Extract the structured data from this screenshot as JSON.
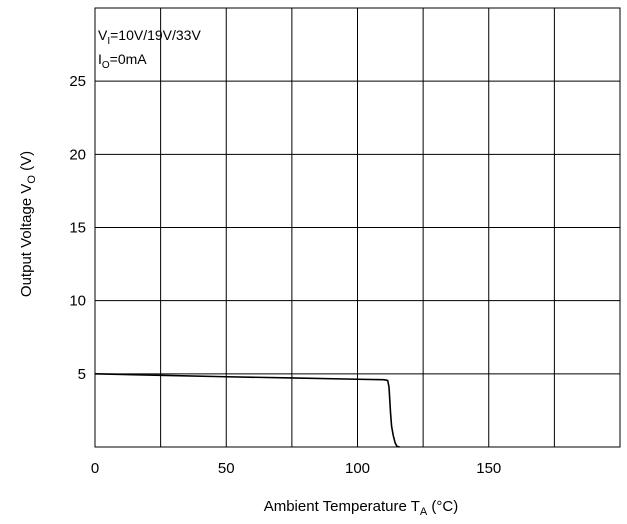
{
  "chart_data": {
    "type": "line",
    "title": "",
    "annotation": {
      "line1": {
        "prefix": "V",
        "sub": "I",
        "rest": "=10V/19V/33V"
      },
      "line2": {
        "prefix": "I",
        "sub": "O",
        "rest": "=0mA"
      }
    },
    "xlabel": {
      "main": "Ambient Temperature  T",
      "sub": "A",
      "unit": " (°C)"
    },
    "ylabel": {
      "main": "Output Voltage  V",
      "sub": "O",
      "unit": "  (V)"
    },
    "xlim": [
      0,
      200
    ],
    "ylim": [
      0,
      30
    ],
    "x_ticks": [
      0,
      50,
      100,
      150
    ],
    "y_ticks": [
      5,
      10,
      15,
      20,
      25
    ],
    "x_grid": [
      25,
      50,
      75,
      100,
      125,
      150,
      175
    ],
    "y_grid": [
      5,
      10,
      15,
      20,
      25
    ],
    "grid": true,
    "line_color": "#000000",
    "series": [
      {
        "x": [
          0,
          25,
          50,
          75,
          100,
          110,
          111.5,
          112,
          112.3,
          112.6,
          113,
          113.6,
          114.3,
          115,
          116
        ],
        "y": [
          5.0,
          4.9,
          4.8,
          4.72,
          4.63,
          4.6,
          4.55,
          4.1,
          3.2,
          2.3,
          1.4,
          0.8,
          0.3,
          0.05,
          0
        ]
      }
    ]
  }
}
